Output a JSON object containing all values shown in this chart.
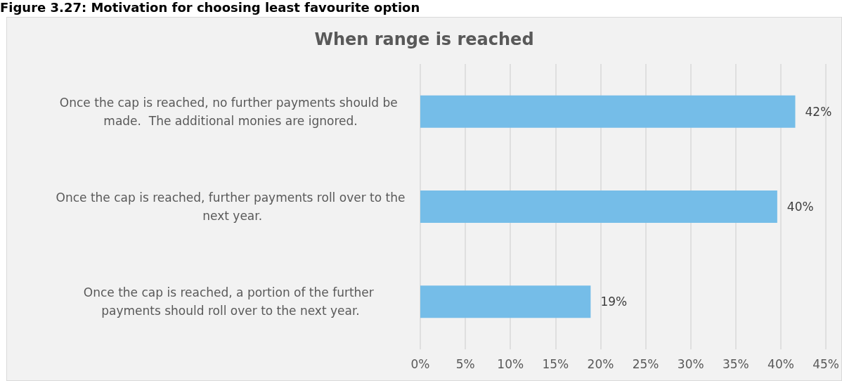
{
  "chart_data": {
    "type": "bar",
    "orientation": "horizontal",
    "title": "Figure 3.27: Motivation for choosing least favourite option",
    "subtitle": "When range is reached",
    "categories": [
      "Once the cap is reached, no further payments should be made.  The additional monies are ignored.",
      "Once the cap is reached, further payments roll over to the next year.",
      "Once the cap is reached, a portion of the further payments should roll over to the next year."
    ],
    "values": [
      41.6,
      39.6,
      18.9
    ],
    "value_labels": [
      "42%",
      "40%",
      "19%"
    ],
    "color": "#75bde8",
    "xlim": [
      0,
      45
    ],
    "xticks": [
      {
        "value": 0,
        "label": "0%"
      },
      {
        "value": 5,
        "label": "5%"
      },
      {
        "value": 10,
        "label": "10%"
      },
      {
        "value": 15,
        "label": "15%"
      },
      {
        "value": 20,
        "label": "20%"
      },
      {
        "value": 25,
        "label": "25%"
      },
      {
        "value": 30,
        "label": "30%"
      },
      {
        "value": 35,
        "label": "35%"
      },
      {
        "value": 40,
        "label": "40%"
      },
      {
        "value": 45,
        "label": "45%"
      }
    ],
    "grid": "x"
  }
}
